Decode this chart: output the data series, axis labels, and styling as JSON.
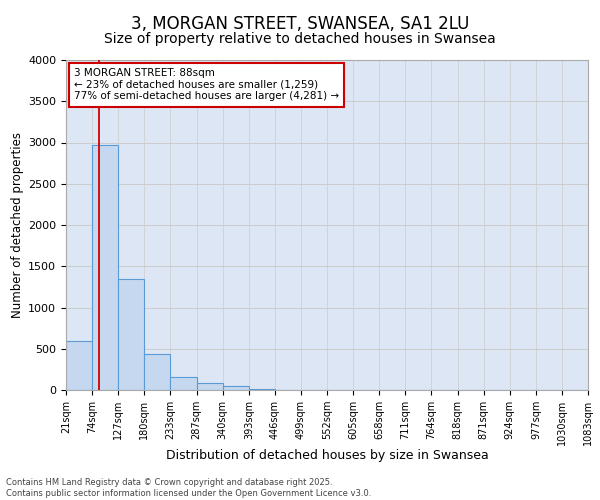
{
  "title": "3, MORGAN STREET, SWANSEA, SA1 2LU",
  "subtitle": "Size of property relative to detached houses in Swansea",
  "xlabel": "Distribution of detached houses by size in Swansea",
  "ylabel": "Number of detached properties",
  "bin_edges": [
    21,
    74,
    127,
    180,
    233,
    287,
    340,
    393,
    446,
    499,
    552,
    605,
    658,
    711,
    764,
    818,
    871,
    924,
    977,
    1030,
    1083
  ],
  "bar_heights": [
    590,
    2970,
    1340,
    440,
    155,
    90,
    45,
    15,
    5,
    3,
    2,
    1,
    1,
    0,
    0,
    0,
    0,
    0,
    0,
    0
  ],
  "bar_color": "#c5d8ef",
  "bar_edge_color": "#5b9bd5",
  "grid_color": "#cccccc",
  "bg_color": "#dce6f5",
  "ylim": [
    0,
    4000
  ],
  "property_sqm": 88,
  "red_line_color": "#cc0000",
  "annotation_text": "3 MORGAN STREET: 88sqm\n← 23% of detached houses are smaller (1,259)\n77% of semi-detached houses are larger (4,281) →",
  "annotation_box_color": "#cc0000",
  "footer_line1": "Contains HM Land Registry data © Crown copyright and database right 2025.",
  "footer_line2": "Contains public sector information licensed under the Open Government Licence v3.0.",
  "title_fontsize": 12,
  "subtitle_fontsize": 10,
  "tick_label_fontsize": 7,
  "ylabel_fontsize": 8.5,
  "xlabel_fontsize": 9
}
